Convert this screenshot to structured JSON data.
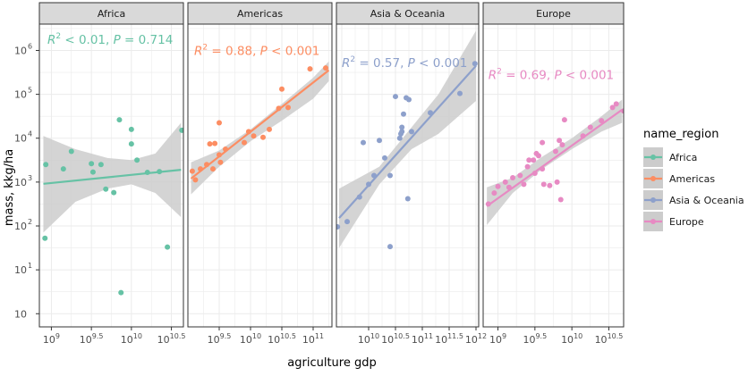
{
  "chart_data": {
    "type": "scatter",
    "xlabel": "agriculture gdp",
    "ylabel": "mass, kkg/ha",
    "x_scale": "log10",
    "y_scale": "log10",
    "y_ticks": [
      {
        "v": 0,
        "label": "10"
      },
      {
        "v": 1,
        "label": "10"
      },
      {
        "v": 2,
        "label": "10"
      },
      {
        "v": 3,
        "label": "10"
      },
      {
        "v": 4,
        "label": "10"
      },
      {
        "v": 5,
        "label": "10"
      },
      {
        "v": 6,
        "label": "10"
      }
    ],
    "y_tick_sup": [
      "",
      "1",
      "2",
      "3",
      "4",
      "5",
      "6"
    ],
    "ylim_log10": [
      -0.3,
      6.6
    ],
    "legend": {
      "title": "name_region",
      "position": "right",
      "entries": [
        "Africa",
        "Americas",
        "Asia & Oceania",
        "Europe"
      ]
    },
    "colors": {
      "Africa": "#66c2a5",
      "Americas": "#fc8d62",
      "Asia & Oceania": "#8da0cb",
      "Europe": "#e78ac3",
      "band": "#cccccc",
      "strip": "#d9d9d9",
      "panel_border": "#333333",
      "grid": "#ebebeb"
    },
    "panels": [
      {
        "name": "Africa",
        "strip": "Africa",
        "xlim_log10": [
          8.85,
          10.65
        ],
        "x_ticks": [
          {
            "v": 9,
            "base": "10",
            "sup": "9"
          },
          {
            "v": 9.5,
            "base": "10",
            "sup": "9.5"
          },
          {
            "v": 10,
            "base": "10",
            "sup": "10"
          },
          {
            "v": 10.5,
            "base": "10",
            "sup": "10.5"
          }
        ],
        "stat": {
          "r2": "< 0.01",
          "p": "= 0.714",
          "at_log10": [
            8.95,
            6.25
          ]
        },
        "fit": [
          [
            8.9,
            2.96
          ],
          [
            10.62,
            3.28
          ]
        ],
        "band_upper": [
          [
            8.9,
            4.05
          ],
          [
            9.3,
            3.75
          ],
          [
            9.7,
            3.55
          ],
          [
            10.0,
            3.5
          ],
          [
            10.3,
            3.65
          ],
          [
            10.62,
            4.35
          ]
        ],
        "band_lower": [
          [
            8.9,
            1.85
          ],
          [
            9.3,
            2.55
          ],
          [
            9.7,
            2.85
          ],
          [
            10.0,
            2.95
          ],
          [
            10.3,
            2.75
          ],
          [
            10.62,
            2.2
          ]
        ],
        "points": [
          [
            8.93,
            3.4
          ],
          [
            8.92,
            1.72
          ],
          [
            9.15,
            3.3
          ],
          [
            9.25,
            3.7
          ],
          [
            9.5,
            3.42
          ],
          [
            9.52,
            3.23
          ],
          [
            9.62,
            3.4
          ],
          [
            9.68,
            2.84
          ],
          [
            9.78,
            2.76
          ],
          [
            9.85,
            4.42
          ],
          [
            9.87,
            0.48
          ],
          [
            10.0,
            4.2
          ],
          [
            10.0,
            3.87
          ],
          [
            10.07,
            3.5
          ],
          [
            10.2,
            3.22
          ],
          [
            10.35,
            3.24
          ],
          [
            10.45,
            1.52
          ],
          [
            10.63,
            4.18
          ]
        ]
      },
      {
        "name": "Americas",
        "strip": "Americas",
        "xlim_log10": [
          9.0,
          11.3
        ],
        "x_ticks": [
          {
            "v": 9.5,
            "base": "10",
            "sup": "9.5"
          },
          {
            "v": 10,
            "base": "10",
            "sup": "10"
          },
          {
            "v": 10.5,
            "base": "10",
            "sup": "10.5"
          },
          {
            "v": 11,
            "base": "10",
            "sup": "11"
          }
        ],
        "stat": {
          "r2": "= 0.88",
          "p": "< 0.001",
          "at_log10": [
            9.1,
            6.0
          ]
        },
        "fit": [
          [
            9.05,
            3.08
          ],
          [
            11.25,
            5.55
          ]
        ],
        "band_upper": [
          [
            9.05,
            3.45
          ],
          [
            9.5,
            3.72
          ],
          [
            10.0,
            4.2
          ],
          [
            10.5,
            4.78
          ],
          [
            11.0,
            5.38
          ],
          [
            11.25,
            5.75
          ]
        ],
        "band_lower": [
          [
            9.05,
            2.72
          ],
          [
            9.5,
            3.35
          ],
          [
            10.0,
            3.93
          ],
          [
            10.5,
            4.4
          ],
          [
            11.0,
            4.9
          ],
          [
            11.25,
            5.3
          ]
        ],
        "points": [
          [
            9.07,
            3.25
          ],
          [
            9.12,
            3.05
          ],
          [
            9.2,
            3.3
          ],
          [
            9.3,
            3.4
          ],
          [
            9.35,
            3.87
          ],
          [
            9.4,
            3.3
          ],
          [
            9.43,
            3.88
          ],
          [
            9.5,
            4.35
          ],
          [
            9.5,
            3.62
          ],
          [
            9.52,
            3.45
          ],
          [
            9.6,
            3.75
          ],
          [
            9.9,
            3.9
          ],
          [
            9.97,
            4.15
          ],
          [
            10.05,
            4.05
          ],
          [
            10.2,
            4.02
          ],
          [
            10.3,
            4.2
          ],
          [
            10.45,
            4.68
          ],
          [
            10.5,
            5.12
          ],
          [
            10.6,
            4.7
          ],
          [
            10.95,
            5.58
          ],
          [
            11.2,
            5.6
          ]
        ]
      },
      {
        "name": "Asia & Oceania",
        "strip": "Asia & Oceania",
        "xlim_log10": [
          9.4,
          12.05
        ],
        "x_ticks": [
          {
            "v": 10,
            "base": "10",
            "sup": "10"
          },
          {
            "v": 10.5,
            "base": "10",
            "sup": "10.5"
          },
          {
            "v": 11,
            "base": "10",
            "sup": "11"
          },
          {
            "v": 11.5,
            "base": "10",
            "sup": "11.5"
          },
          {
            "v": 12,
            "base": "10",
            "sup": "12"
          }
        ],
        "stat": {
          "r2": "= 0.57",
          "p": "< 0.001",
          "at_log10": [
            9.5,
            5.72
          ]
        },
        "fit": [
          [
            9.45,
            2.18
          ],
          [
            12.0,
            5.65
          ]
        ],
        "band_upper": [
          [
            9.45,
            2.85
          ],
          [
            10.2,
            3.35
          ],
          [
            10.8,
            4.25
          ],
          [
            11.3,
            5.0
          ],
          [
            12.0,
            6.45
          ]
        ],
        "band_lower": [
          [
            9.45,
            1.5
          ],
          [
            10.2,
            2.95
          ],
          [
            10.8,
            3.75
          ],
          [
            11.3,
            4.1
          ],
          [
            12.0,
            4.85
          ]
        ],
        "points": [
          [
            9.42,
            1.98
          ],
          [
            9.6,
            2.1
          ],
          [
            9.83,
            2.66
          ],
          [
            9.9,
            3.9
          ],
          [
            10.0,
            2.95
          ],
          [
            10.1,
            3.15
          ],
          [
            10.2,
            3.95
          ],
          [
            10.3,
            3.55
          ],
          [
            10.4,
            3.15
          ],
          [
            10.4,
            1.53
          ],
          [
            10.5,
            4.95
          ],
          [
            10.58,
            4.0
          ],
          [
            10.6,
            4.1
          ],
          [
            10.62,
            4.15
          ],
          [
            10.62,
            4.25
          ],
          [
            10.65,
            4.55
          ],
          [
            10.7,
            4.92
          ],
          [
            10.73,
            2.62
          ],
          [
            10.75,
            4.88
          ],
          [
            10.8,
            4.15
          ],
          [
            11.15,
            4.58
          ],
          [
            11.7,
            5.02
          ],
          [
            11.98,
            5.7
          ]
        ]
      },
      {
        "name": "Europe",
        "strip": "Europe",
        "xlim_log10": [
          8.8,
          10.7
        ],
        "x_ticks": [
          {
            "v": 9,
            "base": "10",
            "sup": "9"
          },
          {
            "v": 9.5,
            "base": "10",
            "sup": "9.5"
          },
          {
            "v": 10,
            "base": "10",
            "sup": "10"
          },
          {
            "v": 10.5,
            "base": "10",
            "sup": "10.5"
          }
        ],
        "stat": {
          "r2": "= 0.69",
          "p": "< 0.001",
          "at_log10": [
            8.87,
            5.45
          ]
        },
        "fit": [
          [
            8.85,
            2.45
          ],
          [
            10.68,
            4.65
          ]
        ],
        "band_upper": [
          [
            8.85,
            2.88
          ],
          [
            9.2,
            3.1
          ],
          [
            9.6,
            3.58
          ],
          [
            10.0,
            4.0
          ],
          [
            10.4,
            4.5
          ],
          [
            10.68,
            4.88
          ]
        ],
        "band_lower": [
          [
            8.85,
            2.02
          ],
          [
            9.2,
            2.75
          ],
          [
            9.6,
            3.3
          ],
          [
            10.0,
            3.75
          ],
          [
            10.4,
            4.15
          ],
          [
            10.68,
            4.35
          ]
        ],
        "points": [
          [
            8.87,
            2.5
          ],
          [
            8.95,
            2.75
          ],
          [
            9.0,
            2.9
          ],
          [
            9.1,
            3.0
          ],
          [
            9.15,
            2.88
          ],
          [
            9.2,
            3.1
          ],
          [
            9.3,
            3.15
          ],
          [
            9.35,
            2.95
          ],
          [
            9.4,
            3.35
          ],
          [
            9.42,
            3.5
          ],
          [
            9.48,
            3.5
          ],
          [
            9.5,
            3.2
          ],
          [
            9.52,
            3.65
          ],
          [
            9.55,
            3.6
          ],
          [
            9.6,
            3.3
          ],
          [
            9.6,
            3.9
          ],
          [
            9.62,
            2.95
          ],
          [
            9.7,
            2.92
          ],
          [
            9.78,
            3.7
          ],
          [
            9.8,
            3.0
          ],
          [
            9.83,
            3.95
          ],
          [
            9.85,
            2.6
          ],
          [
            9.87,
            3.85
          ],
          [
            9.9,
            4.42
          ],
          [
            10.15,
            4.05
          ],
          [
            10.25,
            4.25
          ],
          [
            10.4,
            4.4
          ],
          [
            10.55,
            4.7
          ],
          [
            10.6,
            4.78
          ],
          [
            10.7,
            4.62
          ]
        ]
      }
    ]
  }
}
